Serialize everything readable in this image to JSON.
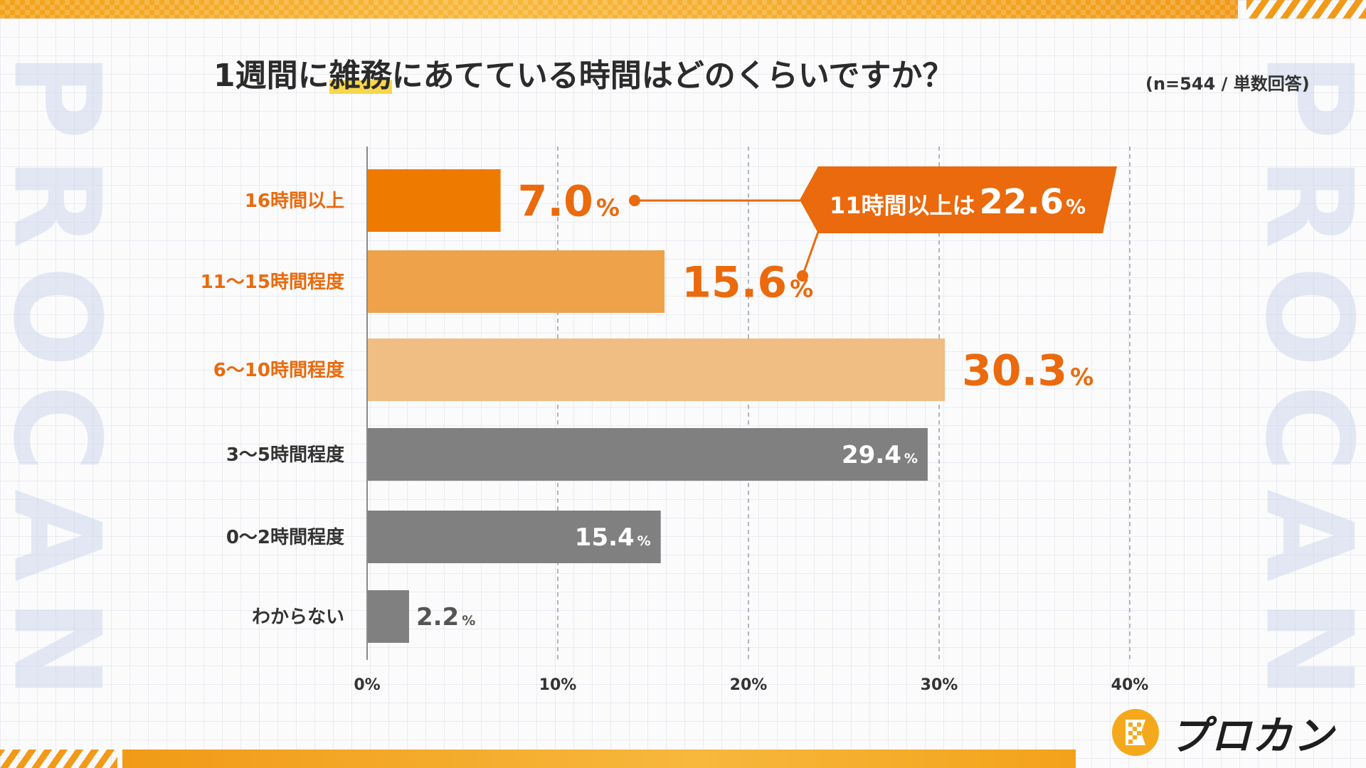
{
  "page": {
    "title_before": "1週間に",
    "title_highlight": "雑務",
    "title_after": "にあてている時間はどのくらいですか？",
    "note": "(n=544 / 単数回答)",
    "watermark": "PROCAN",
    "logo_text": "プロカン"
  },
  "colors": {
    "accent_dark": "#ef7a00",
    "accent_mid": "#eea24a",
    "accent_light": "#f0bd82",
    "gray_bar": "#808080",
    "label_orange": "#ea6a0d",
    "label_gray": "#333333",
    "callout_bg": "#ea6a0d"
  },
  "chart_data": {
    "type": "bar",
    "orientation": "horizontal",
    "title": "1週間に雑務にあてている時間はどのくらいですか？",
    "categories": [
      "16時間以上",
      "11〜15時間程度",
      "6〜10時間程度",
      "3〜5時間程度",
      "0〜2時間程度",
      "わからない"
    ],
    "values": [
      7.0,
      15.6,
      30.3,
      29.4,
      15.4,
      2.2
    ],
    "value_labels": [
      "7.0",
      "15.6",
      "30.3",
      "29.4",
      "15.4",
      "2.2"
    ],
    "unit": "%",
    "xlim": [
      0,
      40
    ],
    "xticks": [
      "0%",
      "10%",
      "20%",
      "30%",
      "40%"
    ],
    "grid": true,
    "annotation": {
      "prefix": "11時間以上は",
      "value": "22.6",
      "unit": "%"
    }
  }
}
